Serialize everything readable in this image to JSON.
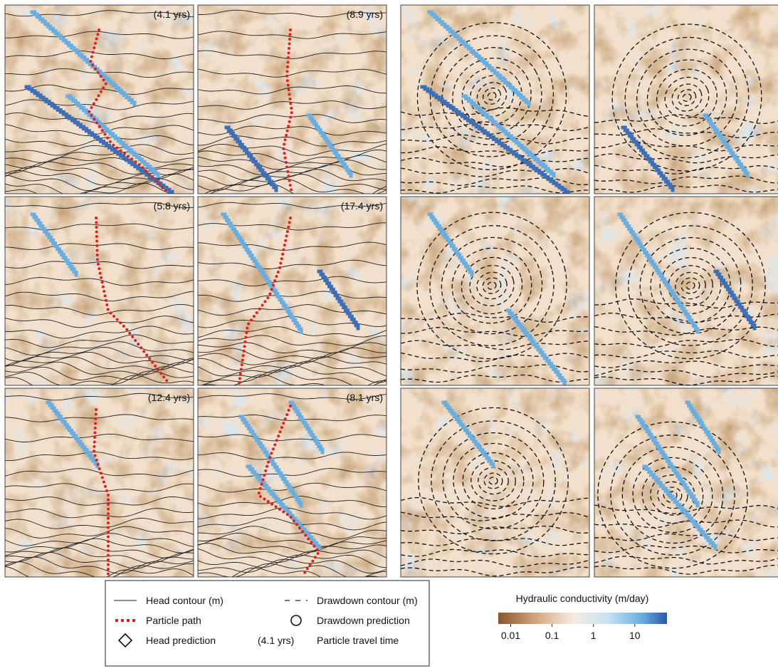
{
  "panels": [
    {
      "travel_time": "(4.1 yrs)"
    },
    {
      "travel_time": "(8.9 yrs)"
    },
    {
      "travel_time": "(5.8 yrs)"
    },
    {
      "travel_time": "(17.4 yrs)"
    },
    {
      "travel_time": "(12.4 yrs)"
    },
    {
      "travel_time": "(8.1 yrs)"
    }
  ],
  "legend": {
    "items": [
      {
        "label": "Head contour (m)"
      },
      {
        "label": "Drawdown contour (m)"
      },
      {
        "label": "Particle path"
      },
      {
        "label": "Drawdown prediction"
      },
      {
        "label": "Head prediction"
      },
      {
        "label": "Particle travel time",
        "symbol_text": "(4.1 yrs)"
      }
    ]
  },
  "colorbar": {
    "title": "Hydraulic conductivity (m/day)",
    "log": true,
    "lim": [
      0.005,
      60
    ],
    "ticks": [
      0.01,
      0.1,
      1,
      10
    ]
  }
}
